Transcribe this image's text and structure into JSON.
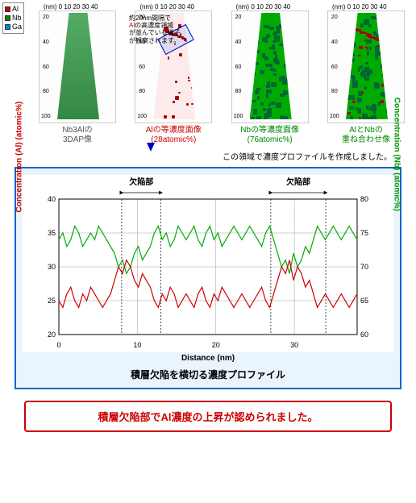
{
  "legend": {
    "al": {
      "label": "Al",
      "color": "#cc0000"
    },
    "nb": {
      "label": "Nb",
      "color": "#008800"
    },
    "ga": {
      "label": "Ga",
      "color": "#0088dd"
    }
  },
  "axis_unit": "(nm)",
  "top_scale": "0 10 20 30 40",
  "y_ticks": [
    "20",
    "40",
    "60",
    "80",
    "100"
  ],
  "panels": [
    {
      "id": "3dap",
      "caption_l1": "Nb3Alの",
      "caption_l2": "3DAP像",
      "color": "#555",
      "bg": "linear-gradient(#5a6,#384)"
    },
    {
      "id": "al-iso",
      "caption_l1": "Alの等濃度面像",
      "caption_l2": "(28atomic%)",
      "color": "#cc0000",
      "bg": "#fdeaea"
    },
    {
      "id": "nb-iso",
      "caption_l1": "Nbの等濃度面像",
      "caption_l2": "(76atomic%)",
      "color": "#008800",
      "bg": "#0a0"
    },
    {
      "id": "overlay",
      "caption_l1": "AlとNbの",
      "caption_l2": "重ね合わせ像",
      "color": "#008800",
      "bg": "#0a0"
    }
  ],
  "annotation": {
    "l1": "約20nm間隔で",
    "l2": "の高濃度領域",
    "al": "Al",
    "l3": "が並んでいる様子",
    "l4": "が観察されます。"
  },
  "mid_text": "この領域で濃度プロファイルを作成しました。",
  "chart": {
    "title": "積層欠陥を横切る濃度プロファイル",
    "xlabel": "Distance (nm)",
    "ylabel_left": "Concentration (Al) (atomic%)",
    "ylabel_right": "Concentration (Nb) (atomic%)",
    "xlim": [
      0,
      38
    ],
    "xticks": [
      0,
      10,
      20,
      30
    ],
    "ylim_l": [
      20,
      40
    ],
    "yticks_l": [
      20,
      25,
      30,
      35,
      40
    ],
    "ylim_r": [
      60,
      80
    ],
    "yticks_r": [
      60,
      65,
      70,
      75,
      80
    ],
    "defect_label": "欠陥部",
    "defect_ranges": [
      [
        8,
        13
      ],
      [
        27,
        34
      ]
    ],
    "colors": {
      "al": "#cc0000",
      "nb": "#00aa00",
      "grid": "#888",
      "bg": "#ffffff"
    },
    "al": [
      25,
      24,
      26,
      27,
      25,
      24,
      26,
      25,
      27,
      26,
      25,
      24,
      25,
      26,
      28,
      30,
      29,
      31,
      30,
      28,
      27,
      29,
      28,
      27,
      25,
      24,
      26,
      25,
      27,
      26,
      24,
      25,
      26,
      25,
      24,
      26,
      27,
      25,
      24,
      26,
      25,
      27,
      26,
      25,
      24,
      25,
      26,
      25,
      24,
      25,
      26,
      27,
      25,
      24,
      26,
      28,
      30,
      29,
      31,
      28,
      30,
      29,
      27,
      28,
      26,
      24,
      25,
      26,
      25,
      24,
      25,
      26,
      25,
      24,
      25,
      26
    ],
    "nb": [
      74,
      75,
      73,
      74,
      76,
      75,
      73,
      74,
      75,
      74,
      76,
      75,
      74,
      73,
      72,
      70,
      71,
      69,
      70,
      72,
      73,
      71,
      72,
      73,
      75,
      76,
      74,
      75,
      73,
      74,
      76,
      75,
      74,
      75,
      76,
      74,
      73,
      75,
      76,
      74,
      75,
      73,
      74,
      75,
      76,
      75,
      74,
      75,
      76,
      75,
      74,
      73,
      75,
      76,
      74,
      72,
      70,
      71,
      69,
      72,
      70,
      71,
      73,
      72,
      74,
      76,
      75,
      74,
      75,
      76,
      75,
      74,
      75,
      76,
      75,
      74
    ]
  },
  "conclusion": "積層欠陥部でAl濃度の上昇が認められました。"
}
